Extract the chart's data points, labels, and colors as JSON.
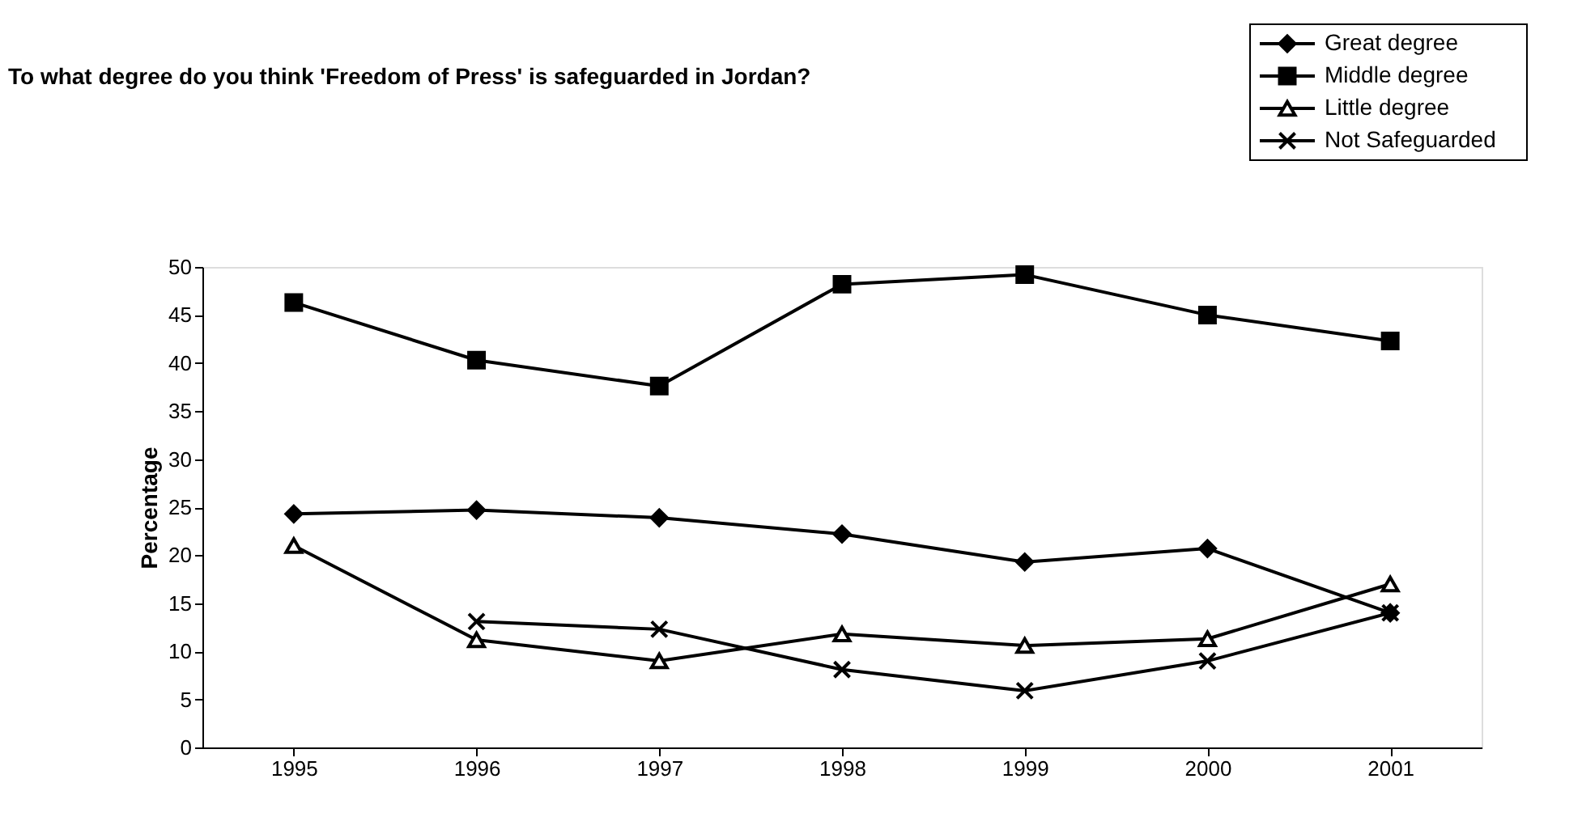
{
  "chart_data": {
    "type": "line",
    "title": "To what degree do you think 'Freedom of Press' is safeguarded in Jordan?",
    "ylabel": "Percentage",
    "categories": [
      "1995",
      "1996",
      "1997",
      "1998",
      "1999",
      "2000",
      "2001"
    ],
    "ylim": [
      0,
      50
    ],
    "yticks": [
      0,
      5,
      10,
      15,
      20,
      25,
      30,
      35,
      40,
      45,
      50
    ],
    "grid": false,
    "legend": "top right",
    "line_style": "solid",
    "series": [
      {
        "name": "Great degree",
        "color": "#000000",
        "marker": "diamond",
        "values": [
          24.3,
          24.7,
          23.9,
          22.2,
          19.3,
          20.7,
          14.0
        ]
      },
      {
        "name": "Middle degree",
        "color": "#000000",
        "marker": "square",
        "values": [
          46.3,
          40.3,
          37.6,
          48.2,
          49.2,
          45.0,
          42.3
        ]
      },
      {
        "name": "Little degree",
        "color": "#000000",
        "marker": "triangle",
        "values": [
          21.0,
          11.2,
          9.0,
          11.8,
          10.6,
          11.3,
          17.0
        ]
      },
      {
        "name": "Not Safeguarded",
        "color": "#000000",
        "marker": "cross",
        "values": [
          null,
          13.1,
          12.3,
          8.1,
          5.9,
          9.0,
          14.0
        ]
      }
    ]
  }
}
